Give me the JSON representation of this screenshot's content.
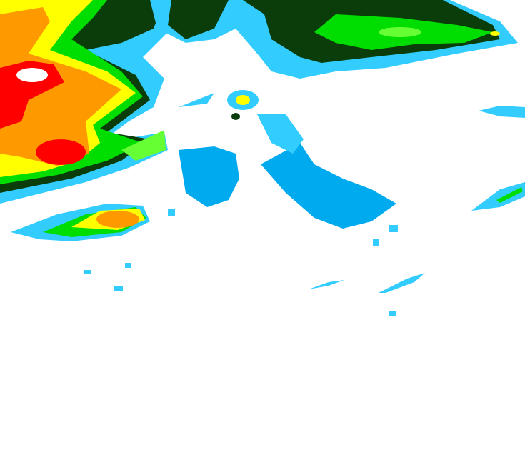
{
  "map": {
    "kind": "precipitation-intensity-raster",
    "legend_shown": false,
    "palette": {
      "background": "#ffffff",
      "light_cyan": "#33ccff",
      "blue": "#00aaee",
      "dark_green": "#0b3d0b",
      "green": "#00dd00",
      "light_green": "#66ff33",
      "yellow": "#ffff00",
      "orange": "#ff9900",
      "red": "#ff0000",
      "peak_white": "#ffffff"
    }
  }
}
